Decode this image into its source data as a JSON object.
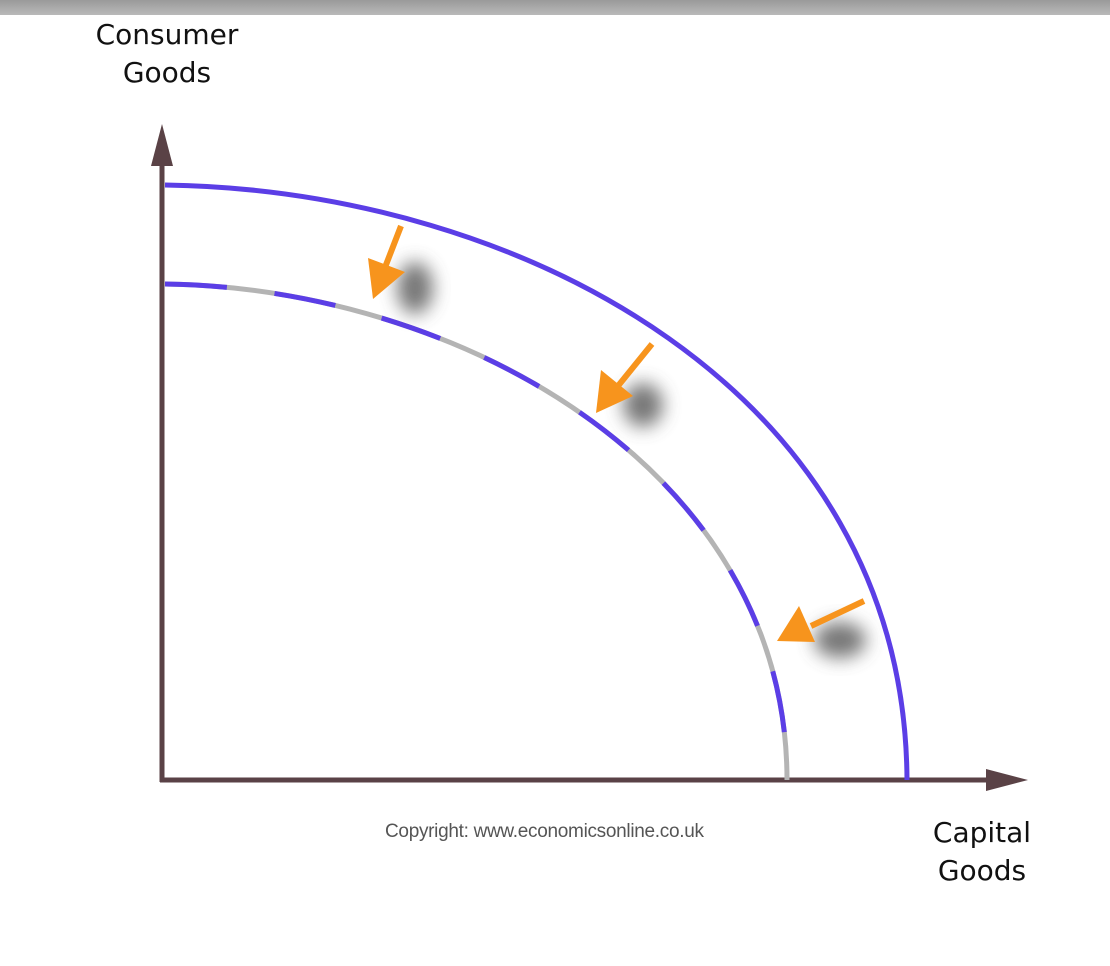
{
  "diagram": {
    "y_axis_label": [
      "Consumer",
      "Goods"
    ],
    "x_axis_label": [
      "Capital",
      "Goods"
    ],
    "copyright": "Copyright: www.economicsonline.co.uk",
    "colors": {
      "axis": "#5a4246",
      "outer_curve": "#5b3ee6",
      "inner_curve_dash": "#5b3ee6",
      "inner_curve_gap": "#b4b4b4",
      "shift_arrow": "#f7941d",
      "top_bar": "#a8a8a8"
    }
  }
}
